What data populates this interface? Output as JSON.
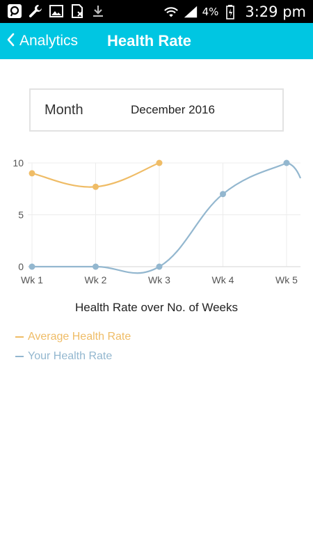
{
  "status_bar": {
    "icons": [
      "search-app-icon",
      "wrench-icon",
      "image-icon",
      "sim-icon",
      "download-icon"
    ],
    "battery_percent": "4%",
    "time": "3:29 pm"
  },
  "header": {
    "back_label": "Analytics",
    "title": "Health Rate"
  },
  "filter": {
    "label": "Month",
    "value": "December 2016"
  },
  "colors": {
    "accent": "#00c6e2",
    "average": "#efbc66",
    "yours": "#93b7cf"
  },
  "chart_data": {
    "type": "line",
    "title": "Health Rate over No. of Weeks",
    "categories": [
      "Wk 1",
      "Wk 2",
      "Wk 3",
      "Wk 4",
      "Wk 5"
    ],
    "y_ticks": [
      "0",
      "5",
      "10"
    ],
    "ylim": [
      0,
      10
    ],
    "grid": true,
    "legend_position": "bottom-left",
    "series": [
      {
        "name": "Average Health Rate",
        "color": "#efbc66",
        "values": [
          9,
          7.7,
          10,
          null,
          null
        ]
      },
      {
        "name": "Your Health Rate",
        "color": "#93b7cf",
        "values": [
          0,
          0,
          0,
          7,
          10
        ]
      }
    ]
  }
}
